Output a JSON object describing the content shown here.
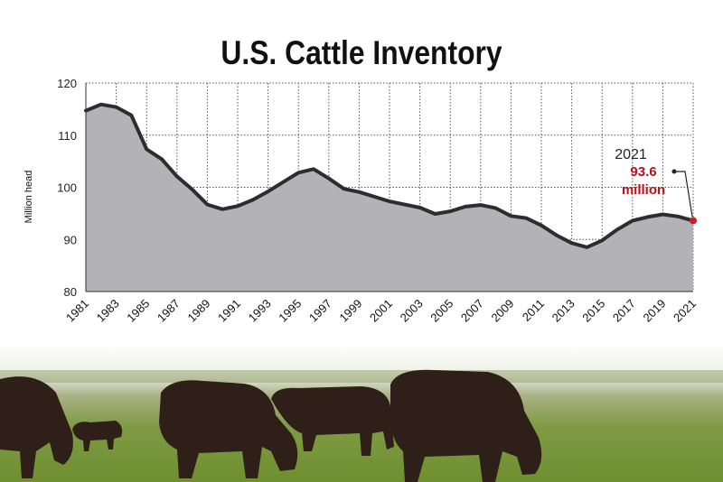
{
  "chart_data": {
    "type": "area",
    "title": "U.S. Cattle Inventory",
    "ylabel": "Million head",
    "ylim": [
      80,
      120
    ],
    "yticks": [
      80,
      90,
      100,
      110,
      120
    ],
    "xlim": [
      1981,
      2021
    ],
    "xticks": [
      1981,
      1983,
      1985,
      1987,
      1989,
      1991,
      1993,
      1995,
      1997,
      1999,
      2001,
      2003,
      2005,
      2007,
      2009,
      2011,
      2013,
      2015,
      2017,
      2019,
      2021
    ],
    "grid": true,
    "x": [
      1981,
      1982,
      1983,
      1984,
      1985,
      1986,
      1987,
      1988,
      1989,
      1990,
      1991,
      1992,
      1993,
      1994,
      1995,
      1996,
      1997,
      1998,
      1999,
      2000,
      2001,
      2002,
      2003,
      2004,
      2005,
      2006,
      2007,
      2008,
      2009,
      2010,
      2011,
      2012,
      2013,
      2014,
      2015,
      2016,
      2017,
      2018,
      2019,
      2020,
      2021
    ],
    "values": [
      114.7,
      115.9,
      115.4,
      113.8,
      107.3,
      105.4,
      102.1,
      99.6,
      96.7,
      95.8,
      96.4,
      97.6,
      99.2,
      101.0,
      102.8,
      103.5,
      101.7,
      99.7,
      99.1,
      98.2,
      97.3,
      96.7,
      96.1,
      94.9,
      95.4,
      96.3,
      96.6,
      96.0,
      94.5,
      94.1,
      92.7,
      90.8,
      89.3,
      88.5,
      89.8,
      91.9,
      93.6,
      94.3,
      94.8,
      94.4,
      93.6
    ],
    "annotation": {
      "year": "2021",
      "value_text": "93.6",
      "unit_text": "million"
    }
  },
  "colors": {
    "area_fill": "#b2b2b7",
    "line": "#2d2d2f",
    "highlight": "#c8202a",
    "grid": "#555555"
  },
  "scene": {
    "background_photo": "black cattle grazing on green pasture"
  }
}
